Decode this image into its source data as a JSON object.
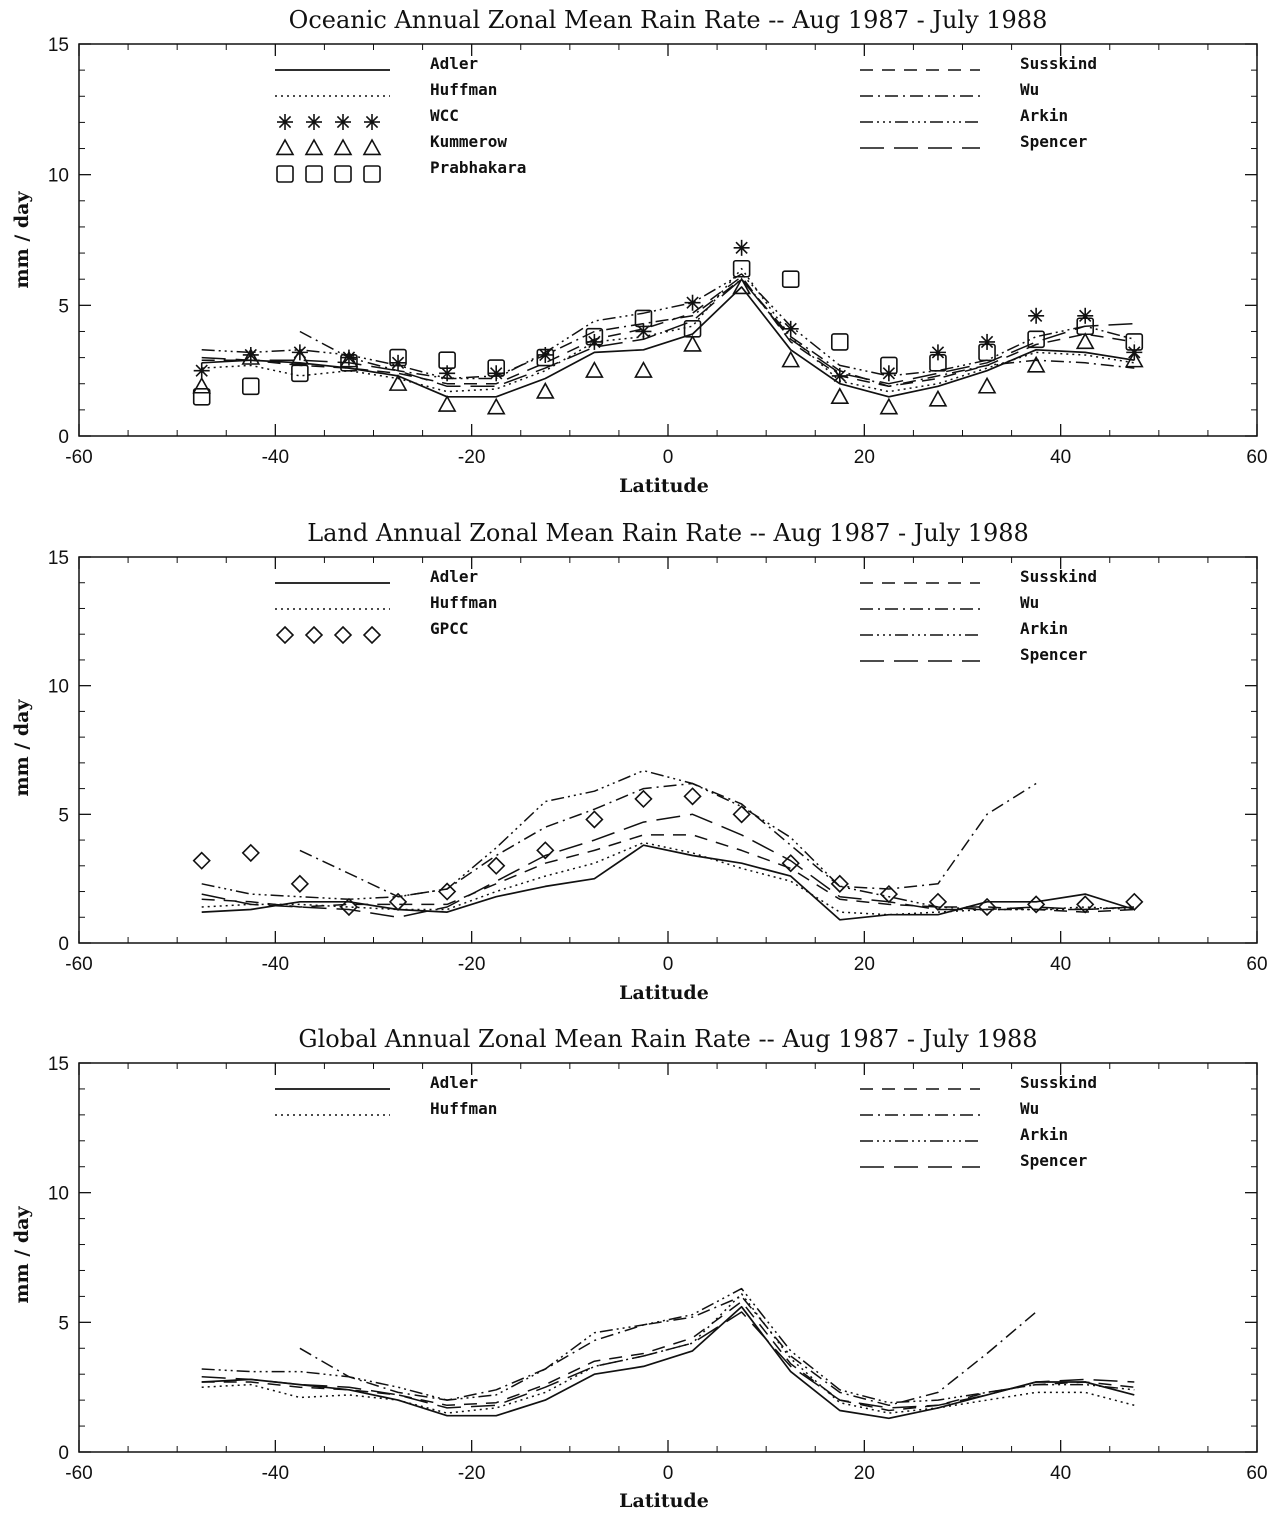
{
  "chart_data": [
    {
      "type": "line",
      "title": "Oceanic Annual Zonal Mean Rain Rate --  Aug 1987 - July 1988",
      "xlabel": "Latitude",
      "ylabel": "mm / day",
      "xlim": [
        -60,
        60
      ],
      "ylim": [
        0,
        15
      ],
      "xticks": [
        "-60",
        "-40",
        "-20",
        "0",
        "20",
        "40",
        "60"
      ],
      "yticks": [
        "0",
        "5",
        "10",
        "15"
      ],
      "x": [
        -47.5,
        -42.5,
        -37.5,
        -32.5,
        -27.5,
        -22.5,
        -17.5,
        -12.5,
        -7.5,
        -2.5,
        2.5,
        7.5,
        12.5,
        17.5,
        22.5,
        27.5,
        32.5,
        37.5,
        42.5,
        47.5
      ],
      "legend_left": [
        "Adler",
        "Huffman",
        "WCC",
        "Kummerow",
        "Prabhakara"
      ],
      "legend_right": [
        "Susskind",
        "Wu",
        "Arkin",
        "Spencer"
      ],
      "series": [
        {
          "name": "Adler",
          "style": "solid",
          "values": [
            2.8,
            2.9,
            2.8,
            2.6,
            2.3,
            1.5,
            1.5,
            2.2,
            3.2,
            3.3,
            3.9,
            5.7,
            3.3,
            2.0,
            1.5,
            1.9,
            2.5,
            3.3,
            3.2,
            2.9
          ]
        },
        {
          "name": "Huffman",
          "style": "dotted",
          "values": [
            2.6,
            2.7,
            2.3,
            2.5,
            2.2,
            1.7,
            1.8,
            2.5,
            3.6,
            3.8,
            4.2,
            6.4,
            3.8,
            2.1,
            1.7,
            2.0,
            2.6,
            3.2,
            3.1,
            2.8
          ]
        },
        {
          "name": "WCC",
          "style": "marker-asterisk",
          "values": [
            2.5,
            3.1,
            3.2,
            3.0,
            2.8,
            2.4,
            2.4,
            3.1,
            3.6,
            4.0,
            5.1,
            7.2,
            4.1,
            2.3,
            2.4,
            3.2,
            3.6,
            4.6,
            4.6,
            3.2
          ]
        },
        {
          "name": "Kummerow",
          "style": "marker-triangle",
          "values": [
            1.9,
            3.0,
            3.0,
            2.9,
            2.0,
            1.2,
            1.1,
            1.7,
            2.5,
            2.5,
            3.5,
            5.7,
            2.9,
            1.5,
            1.1,
            1.4,
            1.9,
            2.7,
            3.6,
            2.9
          ]
        },
        {
          "name": "Prabhakara",
          "style": "marker-square",
          "values": [
            1.5,
            1.9,
            2.4,
            2.8,
            3.0,
            2.9,
            2.6,
            3.0,
            3.8,
            4.5,
            4.1,
            6.4,
            6.0,
            3.6,
            2.7,
            2.8,
            3.2,
            3.7,
            4.2,
            3.6
          ]
        },
        {
          "name": "Susskind",
          "style": "dashed",
          "values": [
            2.9,
            2.9,
            2.7,
            2.6,
            2.4,
            2.0,
            2.0,
            2.8,
            3.7,
            4.1,
            4.7,
            6.1,
            3.6,
            2.3,
            1.9,
            2.2,
            2.7,
            3.5,
            3.9,
            3.6
          ]
        },
        {
          "name": "Wu",
          "style": "dashdot",
          "values": [
            null,
            null,
            4.0,
            3.0,
            2.5,
            2.2,
            2.3,
            3.1,
            4.0,
            4.3,
            4.6,
            6.0,
            3.8,
            2.5,
            1.9,
            2.3,
            2.7,
            2.9,
            2.8,
            2.6
          ]
        },
        {
          "name": "Arkin",
          "style": "dashdotdot",
          "values": [
            3.3,
            3.2,
            3.3,
            3.1,
            2.7,
            2.2,
            2.2,
            3.2,
            4.4,
            4.7,
            5.1,
            6.2,
            4.2,
            2.7,
            2.3,
            2.5,
            2.9,
            3.8,
            4.2,
            3.7
          ]
        },
        {
          "name": "Spencer",
          "style": "longdash",
          "values": [
            3.0,
            2.9,
            2.9,
            2.8,
            2.5,
            1.9,
            1.9,
            2.6,
            3.4,
            3.7,
            4.4,
            6.0,
            3.7,
            2.4,
            2.0,
            2.4,
            2.8,
            3.6,
            4.2,
            4.3
          ]
        }
      ]
    },
    {
      "type": "line",
      "title": "Land Annual Zonal Mean Rain Rate -- Aug 1987 - July 1988",
      "xlabel": "Latitude",
      "ylabel": "mm / day",
      "xlim": [
        -60,
        60
      ],
      "ylim": [
        0,
        15
      ],
      "xticks": [
        "-60",
        "-40",
        "-20",
        "0",
        "20",
        "40",
        "60"
      ],
      "yticks": [
        "0",
        "5",
        "10",
        "15"
      ],
      "x": [
        -47.5,
        -42.5,
        -37.5,
        -32.5,
        -27.5,
        -22.5,
        -17.5,
        -12.5,
        -7.5,
        -2.5,
        2.5,
        7.5,
        12.5,
        17.5,
        22.5,
        27.5,
        32.5,
        37.5,
        42.5,
        47.5
      ],
      "legend_left": [
        "Adler",
        "Huffman",
        "GPCC"
      ],
      "legend_right": [
        "Susskind",
        "Wu",
        "Arkin",
        "Spencer"
      ],
      "series": [
        {
          "name": "Adler",
          "style": "solid",
          "values": [
            1.2,
            1.3,
            1.6,
            1.6,
            1.3,
            1.2,
            1.8,
            2.2,
            2.5,
            3.8,
            3.4,
            3.1,
            2.6,
            0.9,
            1.1,
            1.1,
            1.6,
            1.6,
            1.9,
            1.3
          ]
        },
        {
          "name": "Huffman",
          "style": "dotted",
          "values": [
            1.4,
            1.5,
            1.5,
            1.4,
            1.3,
            1.3,
            2.0,
            2.6,
            3.1,
            3.9,
            3.5,
            2.9,
            2.4,
            1.2,
            1.1,
            1.2,
            1.3,
            1.3,
            1.4,
            1.3
          ]
        },
        {
          "name": "GPCC",
          "style": "marker-diamond",
          "values": [
            3.2,
            3.5,
            2.3,
            1.4,
            1.6,
            2.0,
            3.0,
            3.6,
            4.8,
            5.6,
            5.7,
            5.0,
            3.1,
            2.3,
            1.9,
            1.6,
            1.4,
            1.5,
            1.5,
            1.6
          ]
        },
        {
          "name": "Susskind",
          "style": "dashed",
          "values": [
            1.7,
            1.6,
            1.4,
            1.5,
            1.5,
            1.5,
            2.3,
            3.1,
            3.6,
            4.2,
            4.2,
            3.6,
            2.9,
            1.7,
            1.5,
            1.4,
            1.4,
            1.3,
            1.2,
            1.3
          ]
        },
        {
          "name": "Wu",
          "style": "dashdot",
          "values": [
            null,
            null,
            3.6,
            2.7,
            1.8,
            2.1,
            3.4,
            4.5,
            5.2,
            6.0,
            6.2,
            5.4,
            3.8,
            2.2,
            2.1,
            2.3,
            5.0,
            6.2,
            null,
            null
          ]
        },
        {
          "name": "Arkin",
          "style": "dashdotdot",
          "values": [
            2.3,
            1.9,
            1.8,
            1.7,
            1.8,
            2.1,
            3.7,
            5.5,
            5.9,
            6.7,
            6.2,
            5.3,
            4.1,
            2.2,
            1.8,
            1.4,
            1.3,
            1.3,
            1.3,
            1.4
          ]
        },
        {
          "name": "Spencer",
          "style": "longdash",
          "values": [
            1.9,
            1.5,
            1.4,
            1.3,
            1.0,
            1.4,
            2.4,
            3.4,
            4.0,
            4.7,
            5.0,
            4.2,
            3.2,
            1.8,
            1.6,
            1.3,
            1.3,
            1.4,
            1.3,
            1.4
          ]
        }
      ]
    },
    {
      "type": "line",
      "title": "Global Annual Zonal Mean Rain Rate -- Aug 1987 - July 1988",
      "xlabel": "Latitude",
      "ylabel": "mm / day",
      "xlim": [
        -60,
        60
      ],
      "ylim": [
        0,
        15
      ],
      "xticks": [
        "-60",
        "-40",
        "-20",
        "0",
        "20",
        "40",
        "60"
      ],
      "yticks": [
        "0",
        "5",
        "10",
        "15"
      ],
      "x": [
        -47.5,
        -42.5,
        -37.5,
        -32.5,
        -27.5,
        -22.5,
        -17.5,
        -12.5,
        -7.5,
        -2.5,
        2.5,
        7.5,
        12.5,
        17.5,
        22.5,
        27.5,
        32.5,
        37.5,
        42.5,
        47.5
      ],
      "legend_left": [
        "Adler",
        "Huffman"
      ],
      "legend_right": [
        "Susskind",
        "Wu",
        "Arkin",
        "Spencer"
      ],
      "series": [
        {
          "name": "Adler",
          "style": "solid",
          "values": [
            2.7,
            2.8,
            2.6,
            2.4,
            2.0,
            1.4,
            1.4,
            2.0,
            3.0,
            3.3,
            3.9,
            5.6,
            3.1,
            1.6,
            1.3,
            1.7,
            2.2,
            2.7,
            2.7,
            2.2
          ]
        },
        {
          "name": "Huffman",
          "style": "dotted",
          "values": [
            2.5,
            2.6,
            2.1,
            2.2,
            2.0,
            1.5,
            1.7,
            2.3,
            3.3,
            3.7,
            4.2,
            6.1,
            3.6,
            1.9,
            1.5,
            1.7,
            2.0,
            2.3,
            2.3,
            1.8
          ]
        },
        {
          "name": "Susskind",
          "style": "dashed",
          "values": [
            2.7,
            2.7,
            2.5,
            2.4,
            2.2,
            1.8,
            1.9,
            2.6,
            3.5,
            3.8,
            4.4,
            5.8,
            3.4,
            2.0,
            1.6,
            1.8,
            2.3,
            2.6,
            2.7,
            2.5
          ]
        },
        {
          "name": "Wu",
          "style": "dashdot",
          "values": [
            null,
            null,
            4.0,
            2.9,
            2.3,
            2.0,
            2.4,
            3.2,
            4.3,
            4.9,
            5.2,
            6.0,
            3.7,
            2.3,
            1.8,
            2.3,
            3.8,
            5.4,
            null,
            null
          ]
        },
        {
          "name": "Arkin",
          "style": "dashdotdot",
          "values": [
            3.2,
            3.1,
            3.1,
            2.9,
            2.5,
            2.0,
            2.2,
            3.2,
            4.6,
            4.9,
            5.3,
            6.3,
            3.9,
            2.4,
            1.9,
            2.0,
            2.3,
            2.6,
            2.6,
            2.4
          ]
        },
        {
          "name": "Spencer",
          "style": "longdash",
          "values": [
            2.9,
            2.8,
            2.6,
            2.5,
            2.2,
            1.7,
            1.8,
            2.5,
            3.3,
            3.7,
            4.2,
            5.4,
            3.3,
            2.0,
            1.7,
            1.8,
            2.2,
            2.7,
            2.8,
            2.7
          ]
        }
      ]
    }
  ]
}
